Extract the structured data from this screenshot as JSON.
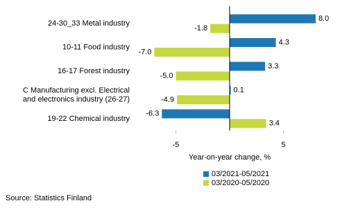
{
  "chart_data": {
    "type": "hbar",
    "categories": [
      "24-30_33 Metal industry",
      "10-11 Food industry",
      "16-17 Forest industry",
      "C Manufacturing excl. Electrical\nand electronics industry (26-27)",
      "19-22 Chemical industry"
    ],
    "series": [
      {
        "name": "03/2021-05/2021",
        "color": "#1f78b4",
        "values": [
          8.0,
          4.3,
          3.3,
          0.1,
          -6.3
        ],
        "value_labels": [
          "8.0",
          "4.3",
          "3.3",
          "0.1",
          "-6.3"
        ]
      },
      {
        "name": "03/2020-05/2020",
        "color": "#c5d83f",
        "values": [
          -1.8,
          -7.0,
          -5.0,
          -4.9,
          3.4
        ],
        "value_labels": [
          "-1.8",
          "-7.0",
          "-5.0",
          "-4.9",
          "3.4"
        ]
      }
    ],
    "xlabel": "Year-on-year change, %",
    "xlim": [
      -9,
      9
    ],
    "xticks": [
      -5,
      5
    ],
    "source": "Source: Statistics Finland"
  }
}
